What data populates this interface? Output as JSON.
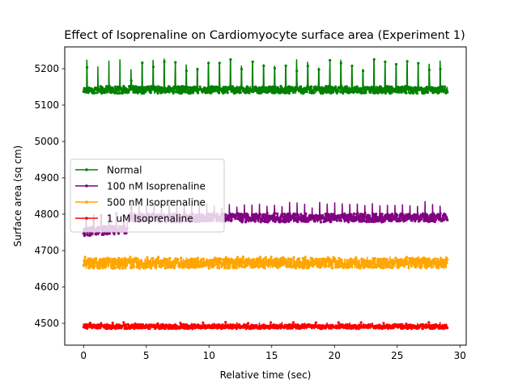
{
  "chart_data": {
    "type": "line",
    "title": "Effect of Isoprenaline on Cardiomyocyte surface area (Experiment 1)",
    "xlabel": "Relative time (sec)",
    "ylabel": "Surface area (sq cm)",
    "xlim": [
      -1.5,
      30.5
    ],
    "ylim": [
      4440,
      5260
    ],
    "xticks": [
      0,
      5,
      10,
      15,
      20,
      25,
      30
    ],
    "yticks": [
      4500,
      4600,
      4700,
      4800,
      4900,
      5000,
      5100,
      5200
    ],
    "x_range": [
      0,
      29
    ],
    "legend_position": "center-left",
    "grid": false,
    "series": [
      {
        "name": "Normal",
        "color": "#008000",
        "baseline": 5142,
        "noise": 10,
        "spike_height": 85,
        "spike_period": 0.88,
        "spike_start": 0.25
      },
      {
        "name": "100 nM Isoprenaline",
        "color": "#800080",
        "baseline": 4790,
        "noise": 12,
        "spike_height": 45,
        "spike_period": 0.6,
        "spike_start": 0.2,
        "early_dip": {
          "x_end": 3.5,
          "value": 4752
        }
      },
      {
        "name": "500 nM Isoprenaline",
        "color": "#FFA500",
        "baseline": 4665,
        "noise": 14,
        "spike_height": 18,
        "spike_period": 0.45,
        "spike_start": 0.1
      },
      {
        "name": "1 uM Isoprenaline",
        "color": "#FF0000",
        "baseline": 4491,
        "noise": 6,
        "spike_height": 12,
        "spike_period": 0.9,
        "spike_start": 0.5
      }
    ]
  }
}
